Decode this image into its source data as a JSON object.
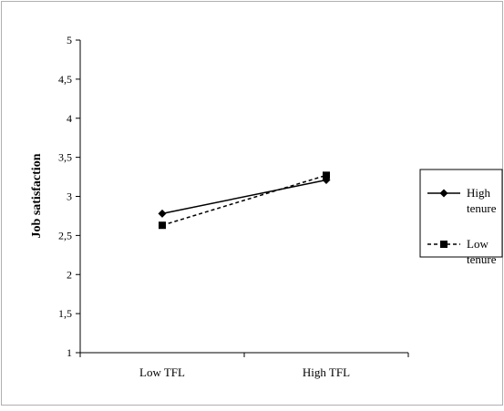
{
  "chart_data": {
    "type": "line",
    "title": "",
    "xlabel": "",
    "ylabel": "Job satisfaction",
    "categories": [
      "Low TFL",
      "High TFL"
    ],
    "ylim": [
      1,
      5
    ],
    "yticks": [
      "1",
      "1,5",
      "2",
      "2,5",
      "3",
      "3,5",
      "4",
      "4,5",
      "5"
    ],
    "ytick_values": [
      1,
      1.5,
      2,
      2.5,
      3,
      3.5,
      4,
      4.5,
      5
    ],
    "grid": false,
    "legend_position": "right",
    "series": [
      {
        "name_lines": [
          "High",
          "tenure"
        ],
        "values": [
          2.78,
          3.21
        ],
        "marker": "diamond",
        "line_style": "solid",
        "color": "#000000"
      },
      {
        "name_lines": [
          "Low",
          "tenure"
        ],
        "values": [
          2.63,
          3.27
        ],
        "marker": "square",
        "line_style": "dashed",
        "color": "#000000"
      }
    ]
  }
}
